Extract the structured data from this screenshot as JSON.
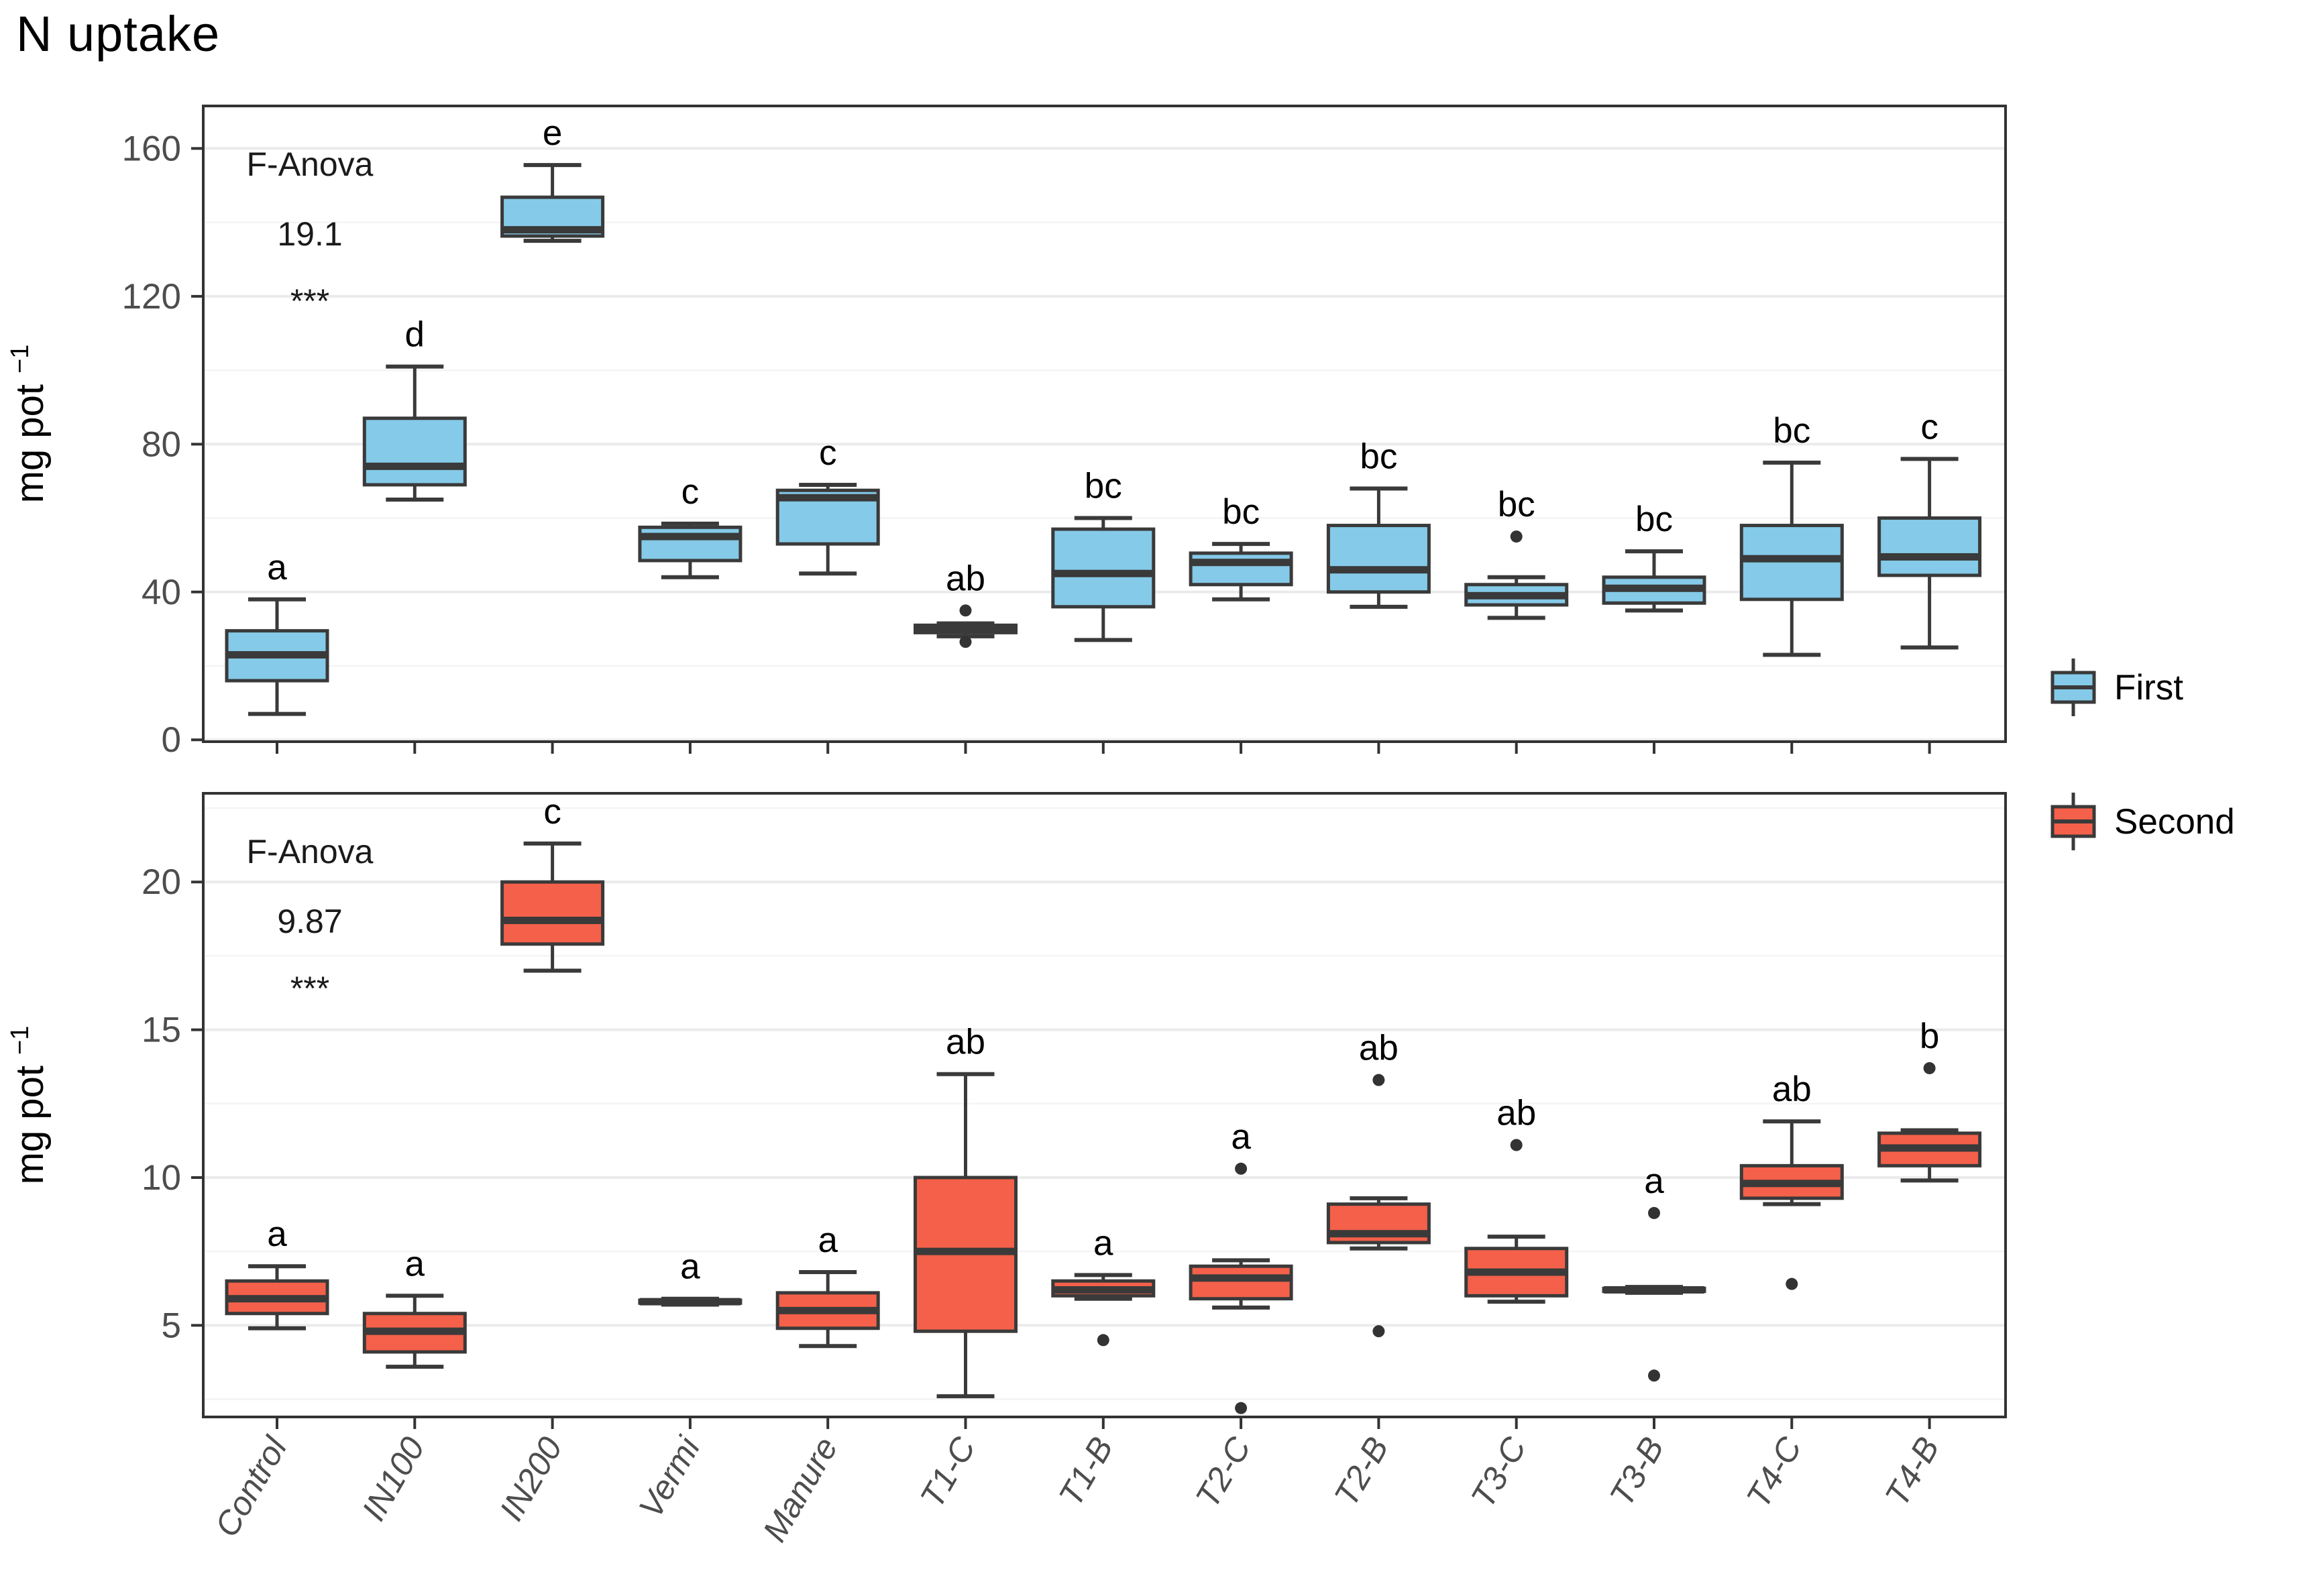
{
  "chart_data": {
    "type": "boxplot",
    "title": "N uptake",
    "categories": [
      "Control",
      "IN100",
      "IN200",
      "Vermi",
      "Manure",
      "T1-C",
      "T1-B",
      "T2-C",
      "T2-B",
      "T3-C",
      "T3-B",
      "T4-C",
      "T4-B"
    ],
    "ylabel": {
      "text": "mg pot",
      "superscript": "−1"
    },
    "grid": true,
    "legend_position": "right-center",
    "legend": [
      {
        "label": "First",
        "color": "#85CAE8"
      },
      {
        "label": "Second",
        "color": "#F4604A"
      }
    ],
    "colors": {
      "box_stroke": "#3A3A3A",
      "panel_border": "#333333",
      "gridline_major": "#EBEBEB",
      "gridline_minor": "#F4F4F4",
      "tick_label": "#4D4D4D",
      "outlier": "#333333",
      "text": "#000000"
    },
    "panels": [
      {
        "name": "First",
        "color": "#85CAE8",
        "anova_label": "F-Anova",
        "anova_value": "19.1",
        "significance": "***",
        "ylim": [
          -0.5,
          171.5
        ],
        "yticks": [
          0,
          40,
          80,
          120,
          160
        ],
        "minor_gridlines": [
          20,
          60,
          100,
          140
        ],
        "boxes": [
          {
            "category": "Control",
            "letter": "a",
            "whisker_low": 7,
            "q1": 16,
            "median": 23,
            "q3": 29.5,
            "whisker_high": 38,
            "outliers": []
          },
          {
            "category": "IN100",
            "letter": "d",
            "whisker_low": 65,
            "q1": 69,
            "median": 74,
            "q3": 87,
            "whisker_high": 101,
            "outliers": []
          },
          {
            "category": "IN200",
            "letter": "e",
            "whisker_low": 135,
            "q1": 136.3,
            "median": 138,
            "q3": 146.8,
            "whisker_high": 155.5,
            "outliers": []
          },
          {
            "category": "Vermi",
            "letter": "c",
            "whisker_low": 44,
            "q1": 48.5,
            "median": 55,
            "q3": 57.5,
            "whisker_high": 58.5,
            "outliers": []
          },
          {
            "category": "Manure",
            "letter": "c",
            "whisker_low": 45,
            "q1": 53,
            "median": 65.5,
            "q3": 67.5,
            "whisker_high": 69,
            "outliers": []
          },
          {
            "category": "T1-C",
            "letter": "ab",
            "whisker_low": 28,
            "q1": 29,
            "median": 30,
            "q3": 31,
            "whisker_high": 31.5,
            "outliers": [
              35,
              26.5
            ]
          },
          {
            "category": "T1-B",
            "letter": "bc",
            "whisker_low": 27,
            "q1": 36,
            "median": 45,
            "q3": 57,
            "whisker_high": 60,
            "outliers": []
          },
          {
            "category": "T2-C",
            "letter": "bc",
            "whisker_low": 38,
            "q1": 42,
            "median": 48,
            "q3": 50.5,
            "whisker_high": 53,
            "outliers": []
          },
          {
            "category": "T2-B",
            "letter": "bc",
            "whisker_low": 36,
            "q1": 40,
            "median": 46,
            "q3": 58,
            "whisker_high": 68,
            "outliers": []
          },
          {
            "category": "T3-C",
            "letter": "bc",
            "whisker_low": 33,
            "q1": 36.5,
            "median": 39,
            "q3": 42,
            "whisker_high": 44,
            "outliers": [
              55
            ]
          },
          {
            "category": "T3-B",
            "letter": "bc",
            "whisker_low": 35,
            "q1": 37,
            "median": 41,
            "q3": 44,
            "whisker_high": 51,
            "outliers": []
          },
          {
            "category": "T4-C",
            "letter": "bc",
            "whisker_low": 23,
            "q1": 38,
            "median": 49,
            "q3": 58,
            "whisker_high": 75,
            "outliers": []
          },
          {
            "category": "T4-B",
            "letter": "c",
            "whisker_low": 25,
            "q1": 44.5,
            "median": 49.5,
            "q3": 60,
            "whisker_high": 76,
            "outliers": []
          }
        ]
      },
      {
        "name": "Second",
        "color": "#F4604A",
        "anova_label": "F-Anova",
        "anova_value": "9.87",
        "significance": "***",
        "ylim": [
          1.9,
          23.0
        ],
        "yticks": [
          5,
          10,
          15,
          20
        ],
        "minor_gridlines": [
          2.5,
          7.5,
          12.5,
          17.5,
          22.5
        ],
        "boxes": [
          {
            "category": "Control",
            "letter": "a",
            "whisker_low": 4.9,
            "q1": 5.4,
            "median": 5.9,
            "q3": 6.5,
            "whisker_high": 7.0,
            "outliers": []
          },
          {
            "category": "IN100",
            "letter": "a",
            "whisker_low": 3.6,
            "q1": 4.1,
            "median": 4.8,
            "q3": 5.4,
            "whisker_high": 6.0,
            "outliers": []
          },
          {
            "category": "IN200",
            "letter": "c",
            "whisker_low": 17.0,
            "q1": 17.9,
            "median": 18.7,
            "q3": 20.0,
            "whisker_high": 21.3,
            "outliers": []
          },
          {
            "category": "Vermi",
            "letter": "a",
            "whisker_low": 5.7,
            "q1": 5.75,
            "median": 5.8,
            "q3": 5.85,
            "whisker_high": 5.9,
            "outliers": []
          },
          {
            "category": "Manure",
            "letter": "a",
            "whisker_low": 4.3,
            "q1": 4.9,
            "median": 5.5,
            "q3": 6.1,
            "whisker_high": 6.8,
            "outliers": []
          },
          {
            "category": "T1-C",
            "letter": "ab",
            "whisker_low": 2.6,
            "q1": 4.8,
            "median": 7.5,
            "q3": 10.0,
            "whisker_high": 13.5,
            "outliers": []
          },
          {
            "category": "T1-B",
            "letter": "a",
            "whisker_low": 5.9,
            "q1": 6.0,
            "median": 6.2,
            "q3": 6.5,
            "whisker_high": 6.7,
            "outliers": [
              4.5
            ]
          },
          {
            "category": "T2-C",
            "letter": "a",
            "whisker_low": 5.6,
            "q1": 5.9,
            "median": 6.6,
            "q3": 7.0,
            "whisker_high": 7.2,
            "outliers": [
              10.3,
              2.2
            ]
          },
          {
            "category": "T2-B",
            "letter": "ab",
            "whisker_low": 7.6,
            "q1": 7.8,
            "median": 8.1,
            "q3": 9.1,
            "whisker_high": 9.3,
            "outliers": [
              13.3,
              4.8
            ]
          },
          {
            "category": "T3-C",
            "letter": "ab",
            "whisker_low": 5.8,
            "q1": 6.0,
            "median": 6.8,
            "q3": 7.6,
            "whisker_high": 8.0,
            "outliers": [
              11.1
            ]
          },
          {
            "category": "T3-B",
            "letter": "a",
            "whisker_low": 6.1,
            "q1": 6.15,
            "median": 6.2,
            "q3": 6.25,
            "whisker_high": 6.3,
            "outliers": [
              8.8,
              3.3
            ]
          },
          {
            "category": "T4-C",
            "letter": "ab",
            "whisker_low": 9.1,
            "q1": 9.3,
            "median": 9.8,
            "q3": 10.4,
            "whisker_high": 11.9,
            "outliers": [
              6.4
            ]
          },
          {
            "category": "T4-B",
            "letter": "b",
            "whisker_low": 9.9,
            "q1": 10.4,
            "median": 11.0,
            "q3": 11.5,
            "whisker_high": 11.6,
            "outliers": [
              13.7
            ]
          }
        ]
      }
    ]
  }
}
